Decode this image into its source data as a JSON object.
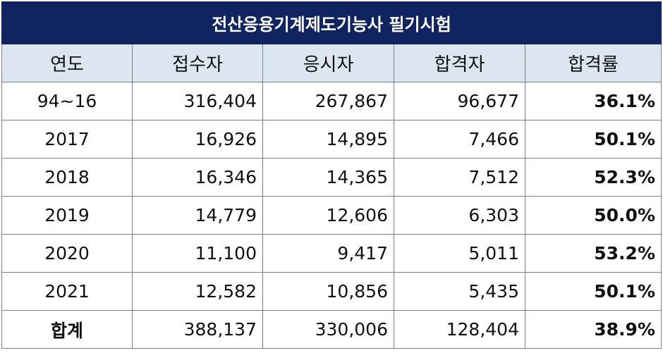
{
  "title": "전산응용기계제도기능사 필기시험",
  "headers": [
    "연도",
    "접수자",
    "응시자",
    "합격자",
    "합격률"
  ],
  "rows": [
    {
      "year": "94~16",
      "applicants": "316,404",
      "examinees": "267,867",
      "passers": "96,677",
      "rate": "36.1%"
    },
    {
      "year": "2017",
      "applicants": "16,926",
      "examinees": "14,895",
      "passers": "7,466",
      "rate": "50.1%"
    },
    {
      "year": "2018",
      "applicants": "16,346",
      "examinees": "14,365",
      "passers": "7,512",
      "rate": "52.3%"
    },
    {
      "year": "2019",
      "applicants": "14,779",
      "examinees": "12,606",
      "passers": "6,303",
      "rate": "50.0%"
    },
    {
      "year": "2020",
      "applicants": "11,100",
      "examinees": "9,417",
      "passers": "5,011",
      "rate": "53.2%"
    },
    {
      "year": "2021",
      "applicants": "12,582",
      "examinees": "10,856",
      "passers": "5,435",
      "rate": "50.1%"
    }
  ],
  "total": {
    "label": "합계",
    "applicants": "388,137",
    "examinees": "330,006",
    "passers": "128,404",
    "rate": "38.9%"
  },
  "colors": {
    "title_bg": "#0f2461",
    "header_bg": "#dce6f1",
    "border": "#7f7f7f"
  }
}
